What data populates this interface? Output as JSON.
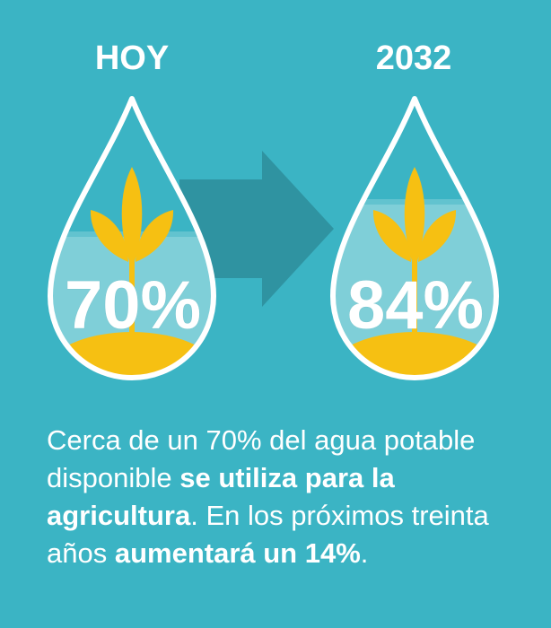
{
  "labels": {
    "left_year": "HOY",
    "right_year": "2032"
  },
  "drops": [
    {
      "percentage": "70%"
    },
    {
      "percentage": "84%"
    }
  ],
  "caption": {
    "part1": "Cerca de un 70% del agua potable disponible ",
    "bold1": "se utiliza para la agricultura",
    "part2": ". En los próximos treinta años ",
    "bold2": "aumentará un 14%",
    "part3": "."
  },
  "colors": {
    "background": "#3bb4c4",
    "water": "#7fcfd8",
    "water_top": "#62c3cf",
    "arrow": "#2f93a1",
    "plant": "#f6c012",
    "outline": "#ffffff"
  }
}
